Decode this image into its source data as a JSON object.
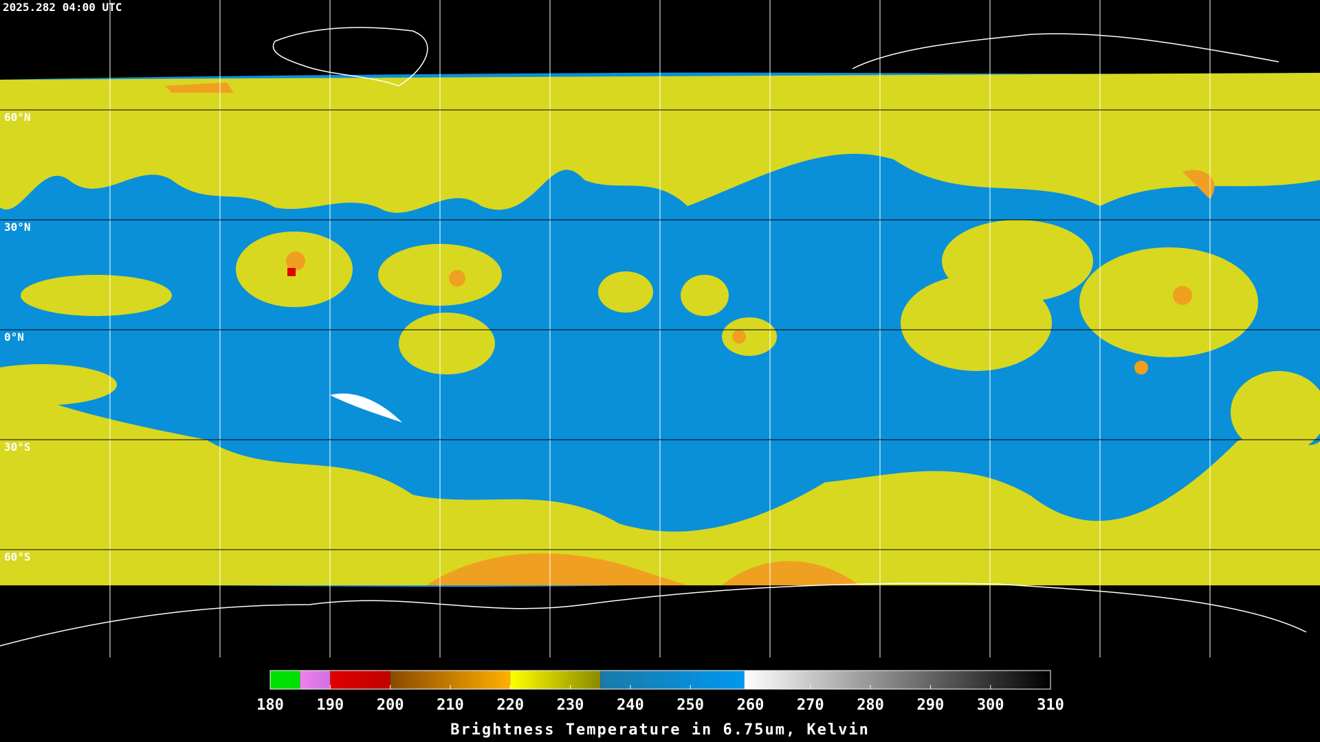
{
  "title": "2025.282 04:00 UTC",
  "latitude_labels": [
    "60°N",
    "30°N",
    "0°N",
    "30°S",
    "60°S"
  ],
  "colorbar": {
    "label": "Brightness Temperature in 6.75um, Kelvin",
    "lim": [
      180,
      310
    ],
    "ticks": [
      180,
      190,
      200,
      210,
      220,
      230,
      240,
      250,
      260,
      270,
      280,
      290,
      300,
      310
    ],
    "segments": [
      {
        "from": 180,
        "to": 185,
        "colors": [
          "#00e000",
          "#00e000"
        ]
      },
      {
        "from": 185,
        "to": 190,
        "colors": [
          "#f080f0",
          "#d070e0"
        ]
      },
      {
        "from": 190,
        "to": 200,
        "colors": [
          "#e00000",
          "#c00000"
        ]
      },
      {
        "from": 200,
        "to": 220,
        "colors": [
          "#8a4a00",
          "#ffb000"
        ]
      },
      {
        "from": 220,
        "to": 235,
        "colors": [
          "#ffff00",
          "#8a8a00"
        ]
      },
      {
        "from": 235,
        "to": 259,
        "colors": [
          "#1a7aa8",
          "#0098f0"
        ]
      },
      {
        "from": 259,
        "to": 310,
        "colors": [
          "#ffffff",
          "#000000"
        ]
      }
    ]
  }
}
